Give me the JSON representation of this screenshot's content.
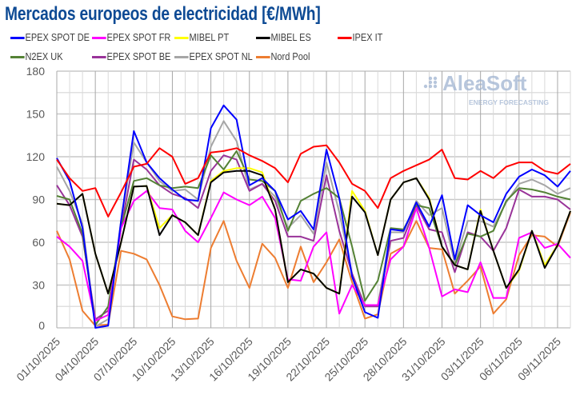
{
  "chart_data": {
    "type": "line",
    "title": "Mercados europeos de electricidad [€/MWh]",
    "xlabel": "",
    "ylabel": "",
    "ylim": [
      0,
      180
    ],
    "yticks": [
      "0",
      "30",
      "60",
      "90",
      "120",
      "150",
      "180"
    ],
    "grid": true,
    "legend": "top",
    "x": [
      "01/10/2025",
      "02/10/2025",
      "03/10/2025",
      "04/10/2025",
      "05/10/2025",
      "06/10/2025",
      "07/10/2025",
      "08/10/2025",
      "09/10/2025",
      "10/10/2025",
      "11/10/2025",
      "12/10/2025",
      "13/10/2025",
      "14/10/2025",
      "15/10/2025",
      "16/10/2025",
      "17/10/2025",
      "18/10/2025",
      "19/10/2025",
      "20/10/2025",
      "21/10/2025",
      "22/10/2025",
      "23/10/2025",
      "24/10/2025",
      "25/10/2025",
      "26/10/2025",
      "27/10/2025",
      "28/10/2025",
      "29/10/2025",
      "30/10/2025",
      "31/10/2025",
      "01/11/2025",
      "02/11/2025",
      "03/11/2025",
      "04/11/2025",
      "05/11/2025",
      "06/11/2025",
      "07/11/2025",
      "08/11/2025",
      "09/11/2025",
      "10/11/2025"
    ],
    "xticks": [
      "01/10/2025",
      "04/10/2025",
      "07/10/2025",
      "10/10/2025",
      "13/10/2025",
      "16/10/2025",
      "19/10/2025",
      "22/10/2025",
      "25/10/2025",
      "28/10/2025",
      "31/10/2025",
      "03/11/2025",
      "06/11/2025",
      "09/11/2025"
    ],
    "series": [
      {
        "name": "EPEX SPOT DE",
        "color": "#0000ff",
        "values": [
          119,
          103,
          70,
          0,
          1.5,
          75,
          138,
          116,
          105,
          97,
          90,
          89,
          140,
          156,
          146,
          100,
          105,
          96,
          76,
          82,
          69,
          125,
          91,
          36,
          11,
          7,
          69,
          68,
          88,
          71,
          93,
          48,
          86,
          79,
          74,
          94,
          106,
          111,
          107,
          99,
          110
        ]
      },
      {
        "name": "EPEX SPOT FR",
        "color": "#ff00ff",
        "values": [
          64,
          57,
          47,
          5,
          9,
          70,
          89,
          96,
          84,
          83,
          68,
          60,
          77,
          95,
          90,
          86,
          92,
          77,
          34,
          33,
          57,
          67,
          10,
          30,
          16,
          16,
          48,
          57,
          84,
          56,
          22,
          27,
          25,
          46,
          21,
          21,
          63,
          67,
          56,
          59,
          49
        ]
      },
      {
        "name": "MIBEL PT",
        "color": "#ffff00",
        "values": [
          87,
          86,
          94,
          52,
          24,
          60,
          99,
          99.5,
          70,
          79,
          74,
          65,
          103,
          110,
          112,
          112,
          109,
          83,
          32,
          41,
          38,
          28,
          24,
          96,
          82,
          51,
          90,
          102,
          105,
          91,
          57,
          44,
          41,
          83,
          54,
          28,
          40,
          68,
          44,
          58,
          82
        ]
      },
      {
        "name": "MIBEL ES",
        "color": "#000000",
        "values": [
          87,
          86,
          94,
          52,
          24,
          60,
          99,
          99.5,
          65,
          79,
          74,
          65,
          102,
          109,
          110,
          110,
          107,
          83,
          32,
          41,
          38,
          28,
          24,
          92,
          81,
          51,
          90,
          102,
          105,
          90,
          57,
          44,
          41,
          82,
          54,
          28,
          41,
          68,
          42,
          58,
          82
        ]
      },
      {
        "name": "IPEX IT",
        "color": "#ff0000",
        "values": [
          118,
          105,
          96,
          98,
          78,
          95,
          113,
          115,
          126,
          120,
          101,
          105,
          123,
          124,
          126,
          121,
          117,
          112,
          102,
          122,
          127,
          128,
          116,
          101,
          96,
          84,
          105,
          110,
          114,
          118,
          125,
          105,
          104,
          110,
          105,
          113,
          116,
          116,
          110,
          108,
          115
        ]
      },
      {
        "name": "N2EX UK",
        "color": "#548235",
        "values": [
          92.5,
          90,
          66,
          2,
          15,
          70,
          103,
          105,
          100,
          98,
          99,
          98,
          121,
          111,
          124,
          104,
          103,
          96,
          68,
          89,
          94,
          98,
          91,
          57,
          19,
          33,
          70,
          69,
          86,
          84,
          57,
          44,
          66,
          64,
          68,
          89,
          98,
          97,
          95,
          92,
          90
        ]
      },
      {
        "name": "EPEX SPOT BE",
        "color": "#993399",
        "values": [
          100,
          86,
          64,
          6,
          12,
          70,
          118,
          111,
          100,
          94,
          91,
          84,
          110,
          121,
          118,
          96,
          101,
          89,
          64,
          64,
          61,
          107,
          68,
          38,
          15,
          15,
          61,
          63,
          86,
          69,
          67,
          39,
          67,
          64,
          54,
          70,
          97,
          92,
          92,
          90,
          83
        ]
      },
      {
        "name": "EPEX SPOT NL",
        "color": "#a6a6a6",
        "values": [
          113,
          96,
          73,
          1,
          6,
          75,
          130,
          116,
          103,
          96,
          97,
          90,
          127,
          145,
          131,
          97,
          101,
          92,
          70,
          79,
          66,
          116,
          81,
          38,
          16,
          16,
          67,
          67,
          89,
          79,
          84,
          45,
          75,
          75,
          71,
          88,
          101,
          104,
          100,
          94,
          98
        ]
      },
      {
        "name": "Nord Pool",
        "color": "#ed7d31",
        "values": [
          68,
          48,
          12,
          1.5,
          2.4,
          54,
          52,
          48,
          30,
          8,
          6,
          6.5,
          56,
          75,
          47,
          28,
          59,
          49,
          28,
          57,
          32,
          46,
          62,
          32,
          6.5,
          9.5,
          52,
          57,
          75,
          56,
          55,
          24,
          33,
          43,
          10,
          20,
          51,
          65,
          64,
          57,
          81
        ]
      }
    ]
  },
  "logo": {
    "name": "AleaSoft",
    "tagline": "ENERGY FORECASTING"
  }
}
